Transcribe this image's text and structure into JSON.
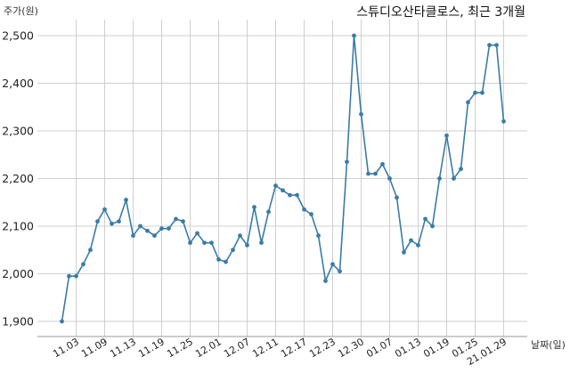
{
  "chart_data": {
    "type": "line",
    "title": "스튜디오산타클로스, 최근 3개월",
    "ylabel": "주가(원)",
    "xlabel": "날짜(일)",
    "ylim": [
      1880,
      2520
    ],
    "yticks": [
      1900,
      2000,
      2100,
      2200,
      2300,
      2400,
      2500
    ],
    "ytick_labels": [
      "1,900",
      "2,000",
      "2,100",
      "2,200",
      "2,300",
      "2,400",
      "2,500"
    ],
    "xtick_labels": [
      "11.03",
      "11.09",
      "11.13",
      "11.19",
      "11.25",
      "12.01",
      "12.07",
      "12.11",
      "12.17",
      "12.23",
      "12.30",
      "01.07",
      "01.13",
      "01.19",
      "01.25",
      "21.01.29"
    ],
    "xtick_index": [
      2,
      6,
      10,
      14,
      18,
      22,
      26,
      30,
      34,
      38,
      42,
      46,
      50,
      54,
      58,
      62
    ],
    "grid": true,
    "line_color": "#3a7ca5",
    "series": [
      {
        "values": [
          1900,
          1995,
          1995,
          2020,
          2050,
          2110,
          2135,
          2105,
          2110,
          2155,
          2080,
          2100,
          2090,
          2080,
          2095,
          2095,
          2115,
          2110,
          2065,
          2085,
          2065,
          2065,
          2030,
          2025,
          2050,
          2080,
          2060,
          2140,
          2065,
          2130,
          2185,
          2175,
          2165,
          2165,
          2135,
          2125,
          2080,
          1985,
          2020,
          2005,
          2235,
          2500,
          2335,
          2210,
          2210,
          2230,
          2200,
          2160,
          2045,
          2070,
          2060,
          2115,
          2100,
          2200,
          2290,
          2200,
          2220,
          2360,
          2380,
          2380,
          2480,
          2480,
          2320
        ]
      }
    ]
  }
}
